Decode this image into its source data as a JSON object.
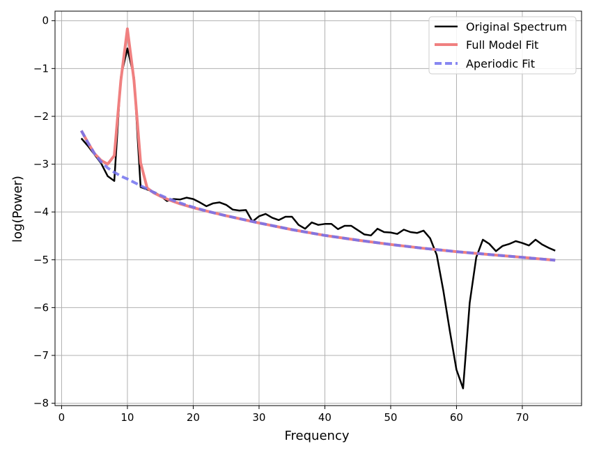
{
  "chart_data": {
    "type": "line",
    "title": "",
    "xlabel": "Frequency",
    "ylabel": "log(Power)",
    "xlim": [
      -1,
      79
    ],
    "ylim": [
      -8.05,
      0.2
    ],
    "xticks": [
      0,
      10,
      20,
      30,
      40,
      50,
      60,
      70
    ],
    "yticks": [
      0,
      -1,
      -2,
      -3,
      -4,
      -5,
      -6,
      -7,
      -8
    ],
    "grid": true,
    "legend_position": "top-right",
    "series": [
      {
        "name": "Original Spectrum",
        "color": "#000000",
        "style": "solid",
        "x": [
          3,
          4,
          5,
          6,
          7,
          8,
          9,
          10,
          11,
          12,
          13,
          14,
          15,
          16,
          17,
          18,
          19,
          20,
          21,
          22,
          23,
          24,
          25,
          26,
          27,
          28,
          29,
          30,
          31,
          32,
          33,
          34,
          35,
          36,
          37,
          38,
          39,
          40,
          41,
          42,
          43,
          44,
          45,
          46,
          47,
          48,
          49,
          50,
          51,
          52,
          53,
          54,
          55,
          56,
          57,
          58,
          59,
          60,
          61,
          62,
          63,
          64,
          65,
          66,
          67,
          68,
          69,
          70,
          71,
          72,
          73,
          74,
          75
        ],
        "y": [
          -2.46,
          -2.62,
          -2.8,
          -2.98,
          -3.25,
          -3.35,
          -1.18,
          -0.58,
          -1.18,
          -3.48,
          -3.53,
          -3.58,
          -3.66,
          -3.77,
          -3.73,
          -3.74,
          -3.7,
          -3.73,
          -3.8,
          -3.88,
          -3.82,
          -3.8,
          -3.85,
          -3.95,
          -3.97,
          -3.96,
          -4.2,
          -4.09,
          -4.04,
          -4.12,
          -4.17,
          -4.1,
          -4.1,
          -4.27,
          -4.35,
          -4.22,
          -4.27,
          -4.25,
          -4.25,
          -4.36,
          -4.29,
          -4.29,
          -4.38,
          -4.47,
          -4.49,
          -4.35,
          -4.42,
          -4.43,
          -4.46,
          -4.37,
          -4.42,
          -4.44,
          -4.39,
          -4.55,
          -4.9,
          -5.65,
          -6.5,
          -7.3,
          -7.69,
          -5.9,
          -4.95,
          -4.58,
          -4.67,
          -4.82,
          -4.71,
          -4.67,
          -4.61,
          -4.65,
          -4.7,
          -4.58,
          -4.68,
          -4.75,
          -4.81
        ]
      },
      {
        "name": "Full Model Fit",
        "color": "#f08080",
        "style": "solid",
        "x": [
          3,
          4,
          5,
          6,
          7,
          8,
          9,
          10,
          11,
          12,
          13,
          14,
          15,
          16,
          17,
          18,
          19,
          20,
          22,
          25,
          28,
          30,
          35,
          40,
          45,
          50,
          55,
          60,
          65,
          70,
          75
        ],
        "y": [
          -2.3,
          -2.55,
          -2.78,
          -2.92,
          -3.0,
          -2.82,
          -1.25,
          -0.17,
          -1.25,
          -2.97,
          -3.5,
          -3.6,
          -3.67,
          -3.73,
          -3.78,
          -3.83,
          -3.87,
          -3.91,
          -3.98,
          -4.08,
          -4.17,
          -4.23,
          -4.37,
          -4.49,
          -4.59,
          -4.68,
          -4.76,
          -4.83,
          -4.89,
          -4.95,
          -5.01
        ]
      },
      {
        "name": "Aperiodic Fit",
        "color": "#7272ee",
        "style": "dashed",
        "x": [
          3,
          4,
          5,
          6,
          7,
          8,
          9,
          10,
          11,
          12,
          13,
          14,
          15,
          16,
          17,
          18,
          19,
          20,
          22,
          25,
          28,
          30,
          35,
          40,
          45,
          50,
          55,
          60,
          65,
          70,
          75
        ],
        "y": [
          -2.3,
          -2.55,
          -2.78,
          -2.95,
          -3.08,
          -3.17,
          -3.25,
          -3.31,
          -3.38,
          -3.45,
          -3.52,
          -3.59,
          -3.65,
          -3.71,
          -3.76,
          -3.81,
          -3.86,
          -3.9,
          -3.98,
          -4.08,
          -4.17,
          -4.23,
          -4.37,
          -4.49,
          -4.59,
          -4.68,
          -4.76,
          -4.83,
          -4.89,
          -4.95,
          -5.01
        ]
      }
    ]
  }
}
